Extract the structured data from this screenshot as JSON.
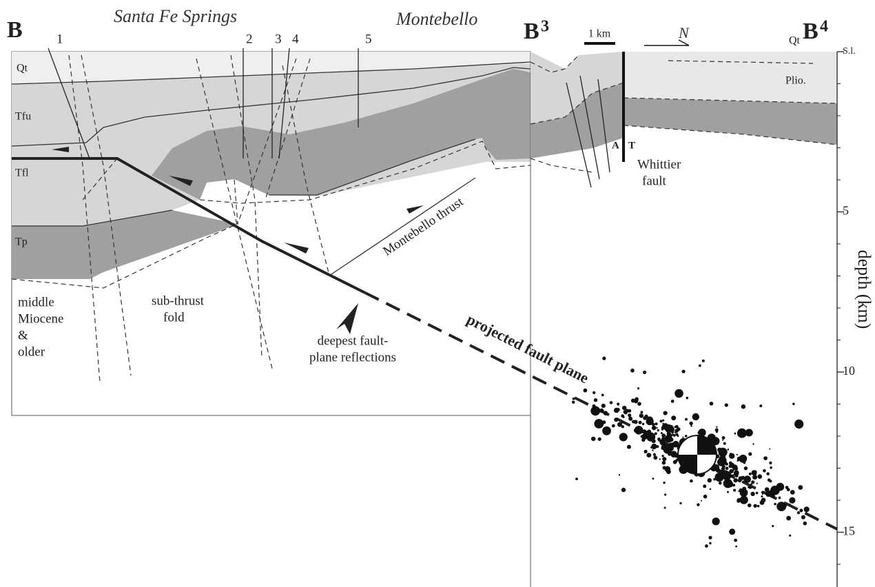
{
  "header": {
    "section_start": "B",
    "town_left": "Santa Fe Springs",
    "town_right": "Montebello",
    "section_mid": {
      "letter": "B",
      "sup": "3"
    },
    "section_end": {
      "letter": "B",
      "sup": "4"
    },
    "scale_bar": "1 km",
    "north": "N",
    "qt_right": "Qt"
  },
  "wells": [
    "1",
    "2",
    "3",
    "4",
    "5"
  ],
  "units": {
    "qt": "Qt",
    "tfu": "Tfu",
    "tfl": "Tfl",
    "tp": "Tp",
    "plio": "Plio."
  },
  "annotations": {
    "middle_miocene": [
      "middle",
      "Miocene",
      "&",
      "older"
    ],
    "sub_thrust": [
      "sub-thrust",
      "fold"
    ],
    "deepest": [
      "deepest fault-",
      "plane reflections"
    ],
    "montebello_thrust": "Montebello thrust",
    "projected": "projected fault plane",
    "fault_a": "A",
    "fault_t": "T",
    "whittier": [
      "Whittier",
      "fault"
    ]
  },
  "depth_axis": {
    "label": "depth (km)",
    "range": [
      0,
      16.7
    ],
    "ticks": [
      {
        "value": 0,
        "label": "S.l."
      },
      5,
      10,
      15
    ]
  }
}
